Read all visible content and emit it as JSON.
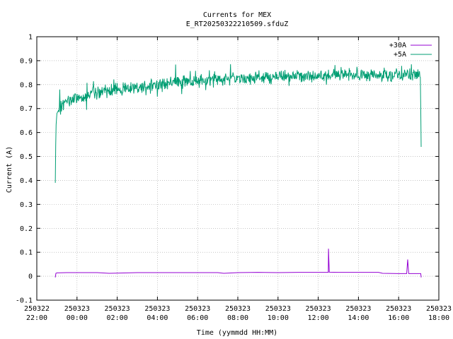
{
  "chart_data": {
    "type": "line",
    "title": "Currents for MEX",
    "subtitle": "E_RT20250322210509.sfduZ",
    "xlabel": "Time (yymmdd HH:MM)",
    "ylabel": "Current (A)",
    "ylim": [
      -0.1,
      1.0
    ],
    "xlim_hours": [
      22,
      42
    ],
    "grid": true,
    "legend_position": "top-right",
    "y_ticks": [
      "-0.1",
      "0",
      "0.1",
      "0.2",
      "0.3",
      "0.4",
      "0.5",
      "0.6",
      "0.7",
      "0.8",
      "0.9",
      "1"
    ],
    "x_ticks": [
      {
        "date": "250322",
        "time": "22:00"
      },
      {
        "date": "250323",
        "time": "00:00"
      },
      {
        "date": "250323",
        "time": "02:00"
      },
      {
        "date": "250323",
        "time": "04:00"
      },
      {
        "date": "250323",
        "time": "06:00"
      },
      {
        "date": "250323",
        "time": "08:00"
      },
      {
        "date": "250323",
        "time": "10:00"
      },
      {
        "date": "250323",
        "time": "12:00"
      },
      {
        "date": "250323",
        "time": "14:00"
      },
      {
        "date": "250323",
        "time": "16:00"
      },
      {
        "date": "250323",
        "time": "18:00"
      }
    ],
    "series": [
      {
        "name": "+30A",
        "color": "#9400d3",
        "x_hours": [
          22.92,
          22.95,
          23.0,
          23.5,
          24.0,
          25.0,
          25.6,
          26.5,
          27.0,
          28.0,
          29.0,
          30.0,
          31.0,
          31.3,
          32.0,
          33.0,
          34.0,
          35.0,
          36.0,
          36.5,
          36.51,
          36.55,
          37.0,
          38.0,
          39.0,
          39.2,
          40.0,
          40.4,
          40.45,
          40.5,
          41.0,
          41.1,
          41.12
        ],
        "values": [
          -0.005,
          0.012,
          0.014,
          0.015,
          0.015,
          0.015,
          0.012,
          0.014,
          0.015,
          0.015,
          0.015,
          0.015,
          0.015,
          0.012,
          0.015,
          0.016,
          0.015,
          0.016,
          0.016,
          0.016,
          0.115,
          0.017,
          0.016,
          0.016,
          0.016,
          0.012,
          0.011,
          0.011,
          0.07,
          0.011,
          0.011,
          0.011,
          -0.005
        ]
      },
      {
        "name": "+5A",
        "color": "#009e73",
        "x_hours": [
          22.92,
          22.95,
          23.0,
          23.2,
          23.5,
          24.0,
          24.5,
          25.0,
          26.0,
          27.0,
          28.0,
          29.0,
          30.0,
          31.0,
          32.0,
          33.0,
          34.0,
          35.0,
          36.0,
          37.0,
          38.0,
          39.0,
          40.0,
          41.0,
          41.08,
          41.1,
          41.12
        ],
        "values": [
          0.39,
          0.62,
          0.68,
          0.71,
          0.73,
          0.745,
          0.755,
          0.765,
          0.78,
          0.79,
          0.8,
          0.81,
          0.815,
          0.82,
          0.825,
          0.83,
          0.833,
          0.835,
          0.838,
          0.84,
          0.84,
          0.84,
          0.84,
          0.84,
          0.83,
          0.7,
          0.54
        ]
      }
    ]
  }
}
